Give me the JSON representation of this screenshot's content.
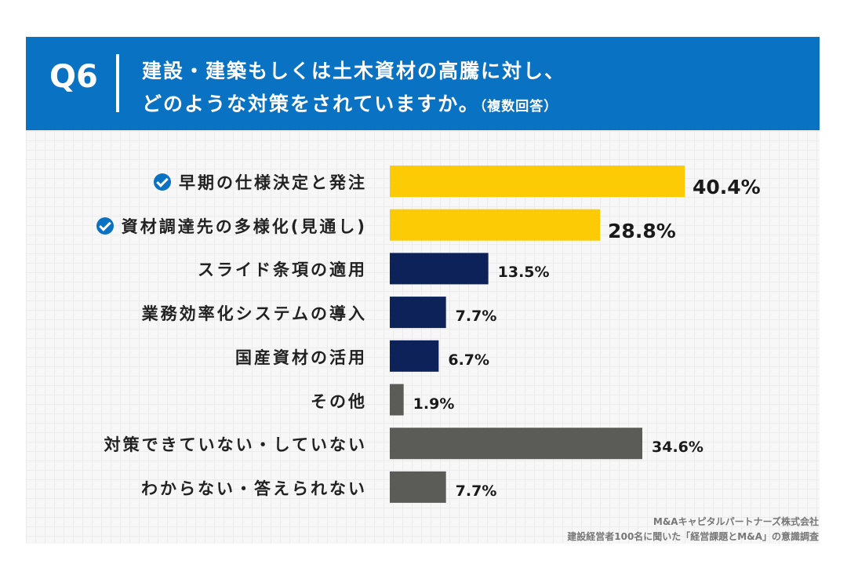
{
  "header": {
    "q_number": "Q6",
    "question_line1": "建設・建築もしくは土木資材の高騰に対し、",
    "question_line2": "どのような対策をされていますか。",
    "question_note": "（複数回答）"
  },
  "colors": {
    "header_bg": "#0a72c2",
    "highlight": "#fccb05",
    "navy": "#0c2259",
    "gray": "#5b5b57",
    "check": "#0a72c2"
  },
  "chart_data": {
    "type": "bar",
    "orientation": "horizontal",
    "unit": "%",
    "xlim": [
      0,
      40.4
    ],
    "categories": [
      "早期の仕様決定と発注",
      "資材調達先の多様化(見通し)",
      "スライド条項の適用",
      "業務効率化システムの導入",
      "国産資材の活用",
      "その他",
      "対策できていない・していない",
      "わからない・答えられない"
    ],
    "values": [
      40.4,
      28.8,
      13.5,
      7.7,
      6.7,
      1.9,
      34.6,
      7.7
    ],
    "value_labels": [
      "40.4%",
      "28.8%",
      "13.5%",
      "7.7%",
      "6.7%",
      "1.9%",
      "34.6%",
      "7.7%"
    ],
    "bar_colors": [
      "highlight",
      "highlight",
      "navy",
      "navy",
      "navy",
      "gray",
      "gray",
      "gray"
    ],
    "checked": [
      true,
      true,
      false,
      false,
      false,
      false,
      false,
      false
    ]
  },
  "source": {
    "line1": "M&Aキャピタルパートナーズ株式会社",
    "line2": "建設経営者100名に聞いた「経営課題とM&A」の意識調査"
  }
}
